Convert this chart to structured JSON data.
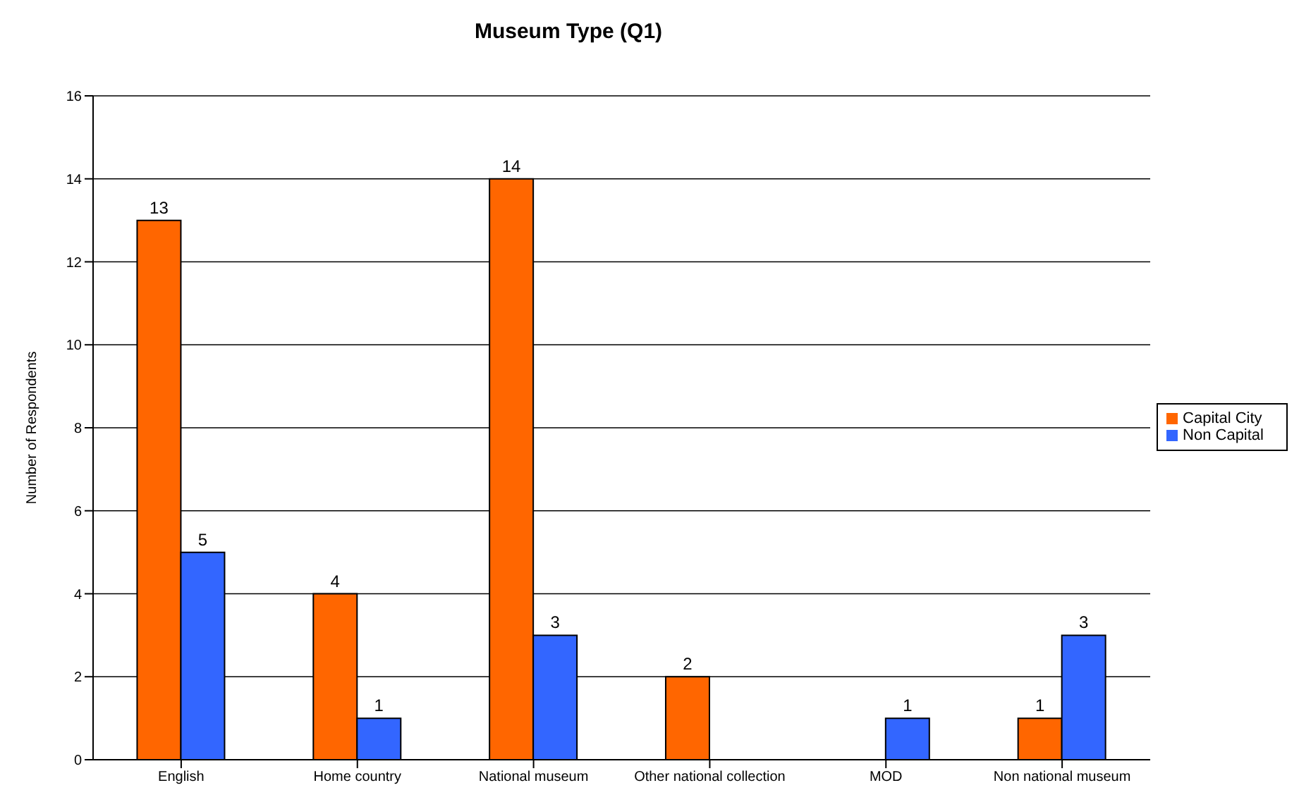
{
  "chart_data": {
    "type": "bar",
    "title": "Museum Type (Q1)",
    "ylabel": "Number of Respondents",
    "categories": [
      "English",
      "Home country",
      "National museum",
      "Other national collection",
      "MOD",
      "Non national museum"
    ],
    "series": [
      {
        "name": "Capital City",
        "color": "#ff6600",
        "values": [
          13,
          4,
          14,
          2,
          null,
          1
        ]
      },
      {
        "name": "Non Capital",
        "color": "#3366ff",
        "values": [
          5,
          1,
          3,
          null,
          1,
          3
        ]
      }
    ],
    "ylim": [
      0,
      16
    ],
    "yticks": [
      0,
      2,
      4,
      6,
      8,
      10,
      12,
      14,
      16
    ],
    "grid": "y",
    "legend": "right",
    "data_labels": true
  }
}
